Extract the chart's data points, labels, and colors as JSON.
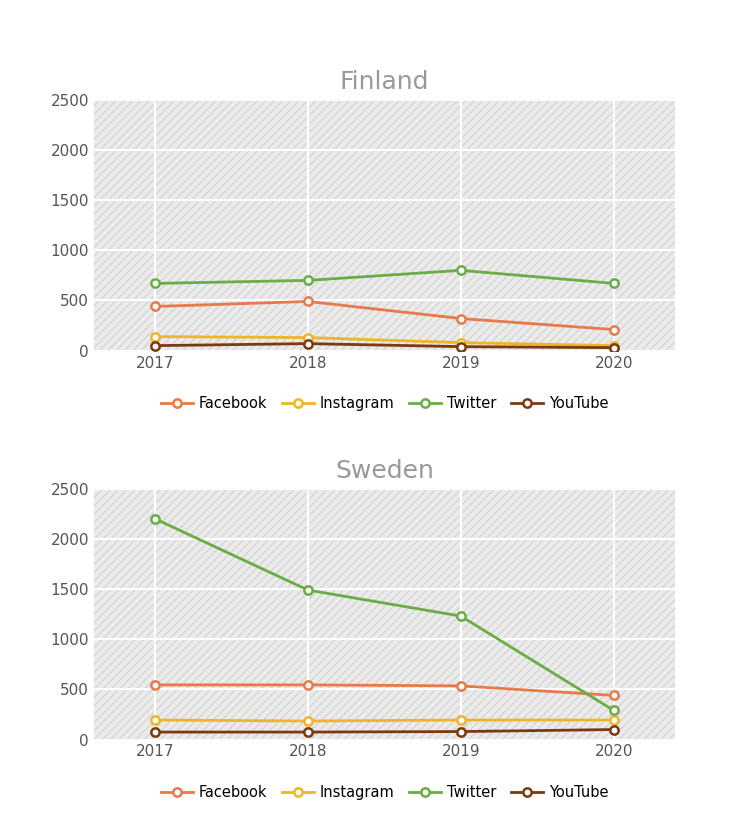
{
  "years": [
    2017,
    2018,
    2019,
    2020
  ],
  "finland": {
    "title": "Finland",
    "Facebook": [
      440,
      490,
      320,
      210
    ],
    "Instagram": [
      140,
      130,
      80,
      50
    ],
    "Twitter": [
      670,
      700,
      800,
      670
    ],
    "YouTube": [
      50,
      70,
      40,
      30
    ]
  },
  "sweden": {
    "title": "Sweden",
    "Facebook": [
      545,
      545,
      535,
      440
    ],
    "Instagram": [
      195,
      185,
      195,
      195
    ],
    "Twitter": [
      2200,
      1490,
      1230,
      290
    ],
    "YouTube": [
      75,
      75,
      80,
      100
    ]
  },
  "series_colors": {
    "Facebook": "#E8794A",
    "Instagram": "#F0B429",
    "Twitter": "#6AAD45",
    "YouTube": "#7B3A10"
  },
  "ylim": [
    0,
    2500
  ],
  "yticks": [
    0,
    500,
    1000,
    1500,
    2000,
    2500
  ],
  "background_color": "#FFFFFF",
  "plot_bg_color": "#E8E8E8",
  "grid_color": "#FFFFFF",
  "title_color": "#999999",
  "title_fontsize": 18,
  "tick_fontsize": 11,
  "legend_fontsize": 10.5,
  "line_width": 2.0,
  "marker": "o",
  "marker_size": 6,
  "marker_facecolor": "#FFFFFF"
}
